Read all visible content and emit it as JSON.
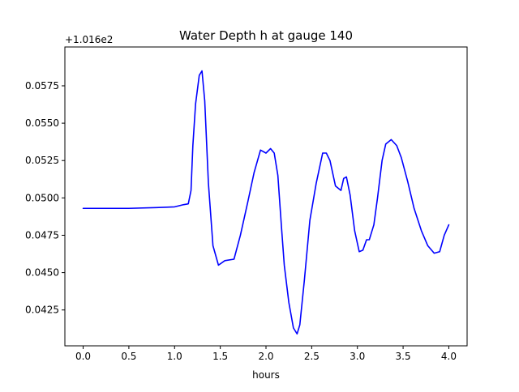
{
  "chart_data": {
    "type": "line",
    "title": "Water Depth h at gauge 140",
    "xlabel": "hours",
    "ylabel": "",
    "offset_label": "+1.016e2",
    "xlim": [
      -0.2,
      4.2
    ],
    "ylim": [
      0.0401,
      0.0601
    ],
    "grid": false,
    "x_ticks": [
      0.0,
      0.5,
      1.0,
      1.5,
      2.0,
      2.5,
      3.0,
      3.5,
      4.0
    ],
    "x_tick_labels": [
      "0.0",
      "0.5",
      "1.0",
      "1.5",
      "2.0",
      "2.5",
      "3.0",
      "3.5",
      "4.0"
    ],
    "y_ticks": [
      0.0425,
      0.045,
      0.0475,
      0.05,
      0.0525,
      0.055,
      0.0575
    ],
    "y_tick_labels": [
      "0.0425",
      "0.0450",
      "0.0475",
      "0.0500",
      "0.0525",
      "0.0550",
      "0.0575"
    ],
    "series": [
      {
        "color": "#0000ff",
        "x": [
          0.0,
          0.5,
          0.8,
          1.0,
          1.1,
          1.15,
          1.18,
          1.2,
          1.23,
          1.27,
          1.3,
          1.33,
          1.37,
          1.42,
          1.48,
          1.55,
          1.65,
          1.72,
          1.8,
          1.87,
          1.94,
          2.0,
          2.05,
          2.09,
          2.13,
          2.17,
          2.2,
          2.25,
          2.3,
          2.34,
          2.37,
          2.42,
          2.48,
          2.55,
          2.62,
          2.66,
          2.7,
          2.76,
          2.82,
          2.85,
          2.88,
          2.92,
          2.97,
          3.02,
          3.06,
          3.1,
          3.13,
          3.18,
          3.22,
          3.27,
          3.31,
          3.37,
          3.43,
          3.48,
          3.55,
          3.62,
          3.7,
          3.77,
          3.84,
          3.9,
          3.95,
          4.0
        ],
        "y": [
          0.0493,
          0.0493,
          0.04935,
          0.0494,
          0.04955,
          0.0496,
          0.0505,
          0.0535,
          0.0563,
          0.0582,
          0.0585,
          0.0565,
          0.051,
          0.0468,
          0.0455,
          0.0458,
          0.0459,
          0.0475,
          0.0497,
          0.0517,
          0.0532,
          0.053,
          0.0533,
          0.053,
          0.0515,
          0.048,
          0.0455,
          0.043,
          0.0413,
          0.0409,
          0.0415,
          0.0445,
          0.0485,
          0.051,
          0.053,
          0.053,
          0.0525,
          0.0508,
          0.0505,
          0.0513,
          0.0514,
          0.0502,
          0.0478,
          0.0464,
          0.0465,
          0.0472,
          0.0472,
          0.0482,
          0.05,
          0.0525,
          0.0536,
          0.0539,
          0.0535,
          0.0527,
          0.0511,
          0.0493,
          0.0478,
          0.0468,
          0.0463,
          0.0464,
          0.0475,
          0.0482
        ]
      }
    ]
  }
}
